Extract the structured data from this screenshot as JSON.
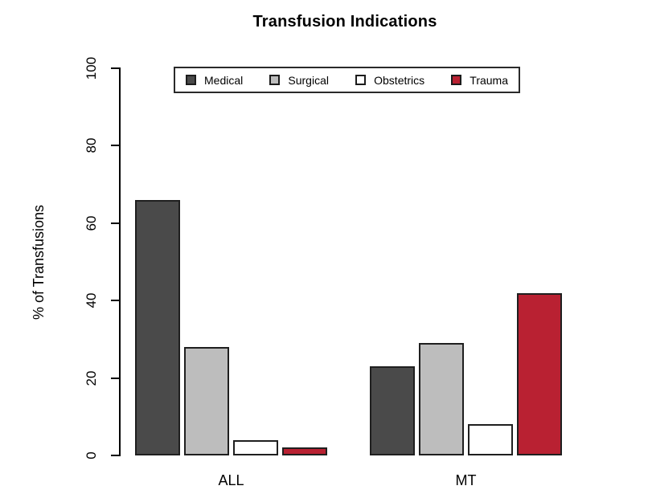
{
  "chart_data": {
    "type": "bar",
    "title": "Transfusion Indications",
    "xlabel": "",
    "ylabel": "% of Transfusions",
    "categories": [
      "ALL",
      "MT"
    ],
    "series": [
      {
        "name": "Medical",
        "color": "#4a4a4a",
        "values": [
          66,
          23
        ]
      },
      {
        "name": "Surgical",
        "color": "#bdbdbd",
        "values": [
          28,
          29
        ]
      },
      {
        "name": "Obstetrics",
        "color": "#ffffff",
        "values": [
          4,
          8
        ]
      },
      {
        "name": "Trauma",
        "color": "#b92132",
        "values": [
          2,
          42
        ]
      }
    ],
    "ylim": [
      0,
      100
    ],
    "yticks": [
      0,
      20,
      40,
      60,
      80,
      100
    ],
    "grid": false,
    "legend_position": "top-inside",
    "bar_border_color": "#1f1f1f",
    "axis_color": "#000000"
  }
}
